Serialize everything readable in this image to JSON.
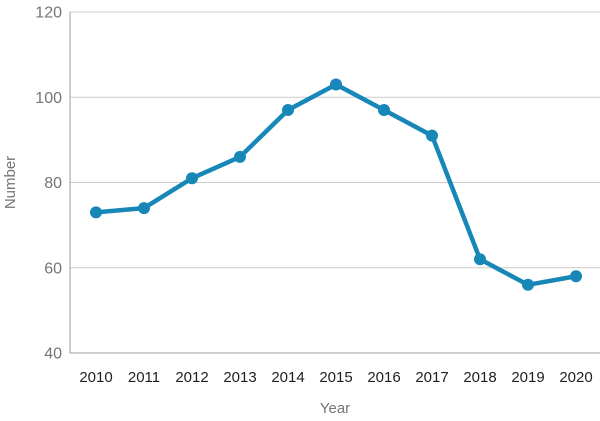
{
  "chart_data": {
    "type": "line",
    "title": "",
    "categories": [
      "2010",
      "2011",
      "2012",
      "2013",
      "2014",
      "2015",
      "2016",
      "2017",
      "2018",
      "2019",
      "2020"
    ],
    "series": [
      {
        "name": "Number",
        "values": [
          73,
          74,
          81,
          86,
          97,
          103,
          97,
          91,
          62,
          56,
          58
        ]
      }
    ],
    "xlabel": "Year",
    "ylabel": "Number",
    "ylim": [
      40,
      120
    ],
    "yticks": [
      40,
      60,
      80,
      100,
      120
    ],
    "grid": true,
    "legend_position": "none",
    "colors": {
      "line": "#1787b8",
      "marker": "#1787b8",
      "gridline": "#cccccc",
      "axis_line": "#9e9e9e",
      "y_tick_label": "#757575",
      "x_tick_label": "#212121",
      "axis_title": "#757575",
      "background": "#ffffff"
    }
  }
}
